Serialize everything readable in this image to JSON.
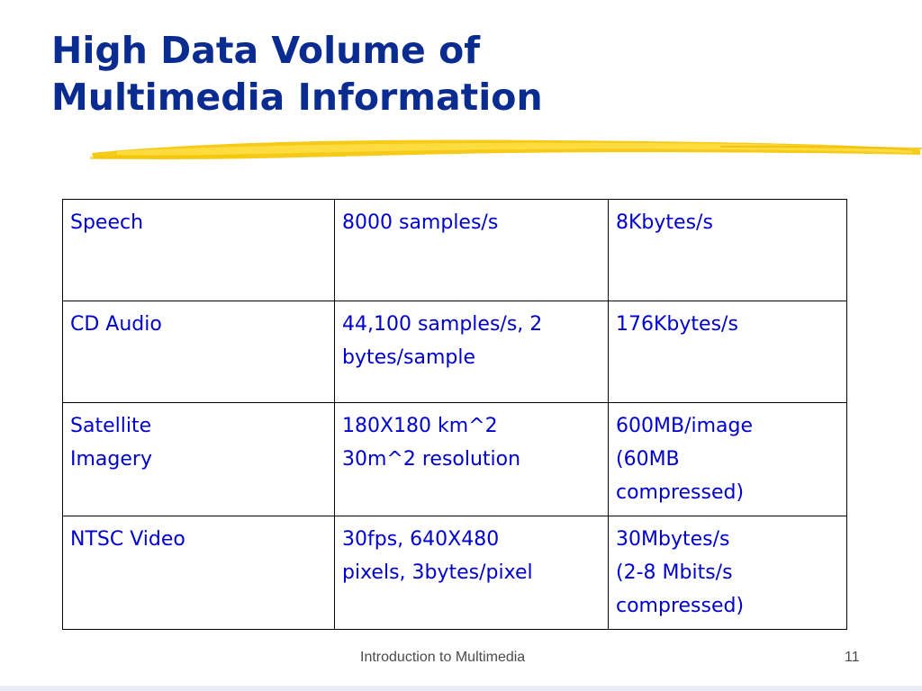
{
  "title": {
    "line1": "High Data Volume of",
    "line2": "Multimedia Information"
  },
  "accent_color": "#0a2b8f",
  "text_color": "#0000cc",
  "underline_color": "#f5c400",
  "table": {
    "rows": [
      {
        "media": [
          "Speech"
        ],
        "rate": [
          "8000 samples/s"
        ],
        "volume": [
          "8Kbytes/s"
        ]
      },
      {
        "media": [
          "CD Audio"
        ],
        "rate": [
          "44,100 samples/s, 2",
          "bytes/sample"
        ],
        "volume": [
          "176Kbytes/s"
        ]
      },
      {
        "media": [
          "Satellite",
          "Imagery"
        ],
        "rate": [
          "180X180 km^2",
          "30m^2 resolution"
        ],
        "volume": [
          "600MB/image",
          "(60MB",
          "compressed)"
        ]
      },
      {
        "media": [
          "NTSC Video"
        ],
        "rate": [
          "30fps, 640X480",
          "pixels, 3bytes/pixel"
        ],
        "volume": [
          "30Mbytes/s",
          "(2-8 Mbits/s",
          "compressed)"
        ]
      }
    ]
  },
  "footer": {
    "text": "Introduction to Multimedia",
    "page_number": "11"
  }
}
